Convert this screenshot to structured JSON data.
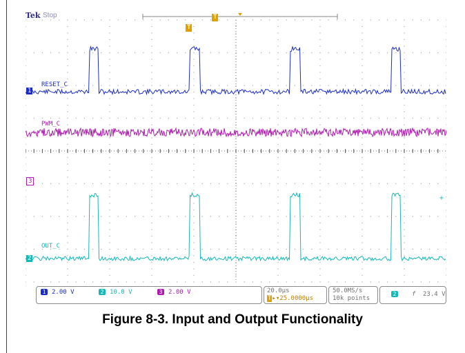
{
  "header": {
    "brand": "Tek",
    "state": "Stop"
  },
  "trigger": {
    "marker": "T",
    "indicator": "T"
  },
  "channels": [
    {
      "id": "1",
      "label": "RESET_C",
      "color": "#1a2cc8"
    },
    {
      "id": "2",
      "label": "OUT_C",
      "color": "#14b8b8"
    },
    {
      "id": "3",
      "label": "PWM_C",
      "color": "#b01cb0"
    }
  ],
  "ch3_marker": "3",
  "status": {
    "ch1_scale": "2.00 V",
    "ch2_scale": "10.0 V",
    "ch3_scale": "2.00 V",
    "timebase": "20.0µs",
    "trigger_pos": "25.0000µs",
    "sample_rate": "50.0MS/s",
    "record_length": "10k points",
    "trig_source": "2",
    "trig_slope": "f",
    "trig_level": "23.4 V"
  },
  "colors": {
    "grid": "#b0b0b0",
    "trigger": "#e0a000"
  },
  "caption": "Figure 8-3. Input and Output Functionality"
}
